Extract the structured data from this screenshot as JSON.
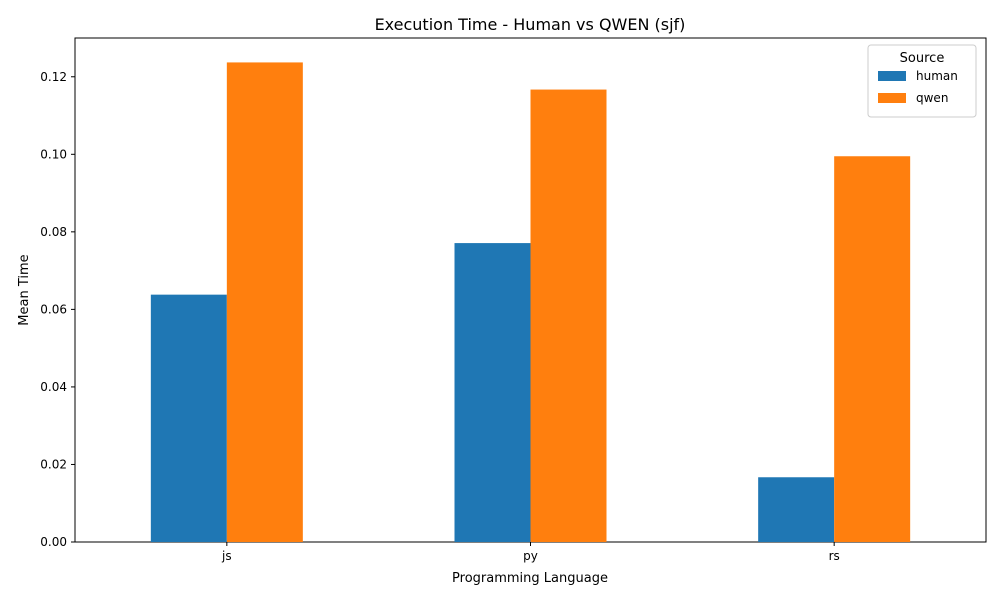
{
  "chart_data": {
    "type": "bar",
    "title": "Execution Time - Human vs QWEN (sjf)",
    "xlabel": "Programming Language",
    "ylabel": "Mean Time",
    "categories": [
      "js",
      "py",
      "rs"
    ],
    "series": [
      {
        "name": "human",
        "color": "#1f77b4",
        "values": [
          0.0638,
          0.0771,
          0.0167
        ]
      },
      {
        "name": "qwen",
        "color": "#ff7f0e",
        "values": [
          0.1237,
          0.1167,
          0.0995
        ]
      }
    ],
    "ylim": [
      0,
      0.13
    ],
    "yticks": [
      "0.00",
      "0.02",
      "0.04",
      "0.06",
      "0.08",
      "0.10",
      "0.12"
    ],
    "legend": {
      "title": "Source",
      "position": "top-right"
    },
    "grid": false
  }
}
